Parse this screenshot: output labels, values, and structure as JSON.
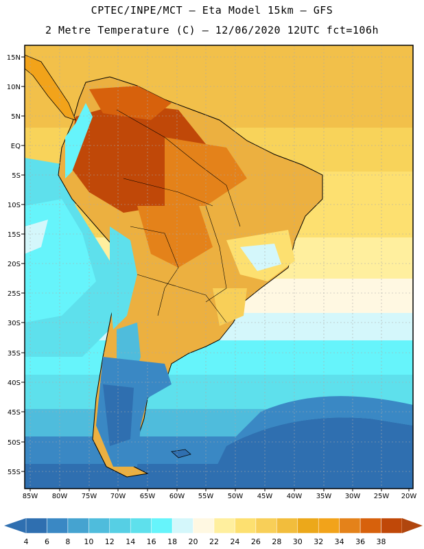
{
  "header": {
    "line1": "CPTEC/INPE/MCT –  Eta Model 15km – GFS",
    "line2": "2 Metre Temperature (C) – 12/06/2020 12UTC fct=106h"
  },
  "map": {
    "variable": "2 Metre Temperature",
    "units": "C",
    "lat_labels": [
      "15N",
      "10N",
      "5N",
      "EQ",
      "5S",
      "10S",
      "15S",
      "20S",
      "25S",
      "30S",
      "35S",
      "40S",
      "45S",
      "50S",
      "55S"
    ],
    "lon_labels": [
      "85W",
      "80W",
      "75W",
      "70W",
      "65W",
      "60W",
      "55W",
      "50W",
      "45W",
      "40W",
      "35W",
      "30W",
      "25W",
      "20W"
    ],
    "lat_range": [
      17,
      -58
    ],
    "lon_range": [
      -86,
      -20
    ]
  },
  "colorbar": {
    "labels": [
      "4",
      "6",
      "8",
      "10",
      "12",
      "14",
      "16",
      "18",
      "20",
      "22",
      "24",
      "26",
      "28",
      "30",
      "32",
      "34",
      "36",
      "38"
    ],
    "colors": [
      "#2f6fb0",
      "#3a88c4",
      "#45a3d0",
      "#4fbcdc",
      "#56cfe4",
      "#5ee0ec",
      "#66f4fb",
      "#d4f7fb",
      "#fff8e2",
      "#ffef9e",
      "#fde070",
      "#f8cf58",
      "#f2bd3c",
      "#eca81a",
      "#f2a31a",
      "#e4821a",
      "#d7610c",
      "#c04808",
      "#b0460e"
    ]
  }
}
